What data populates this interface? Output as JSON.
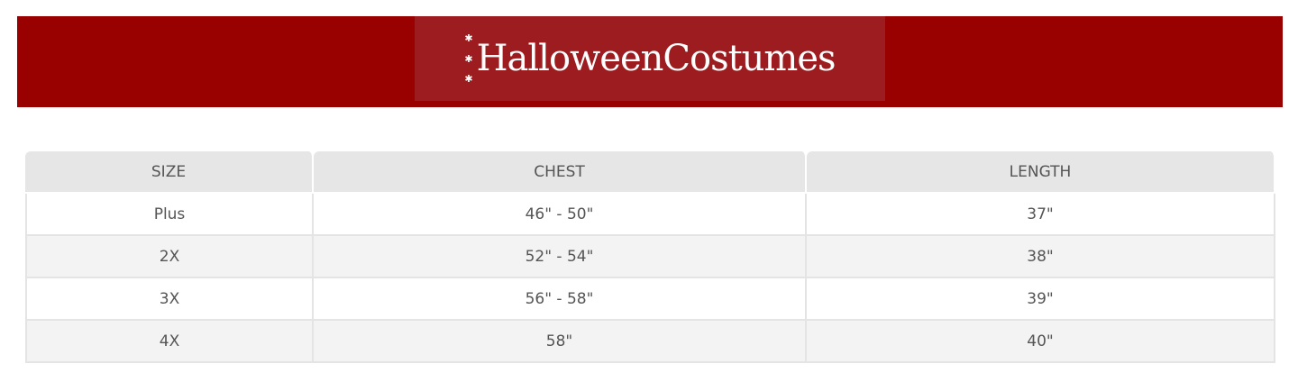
{
  "header": {
    "logo_text": "HalloweenCostumes",
    "brand_color": "#990000"
  },
  "table": {
    "columns": [
      "SIZE",
      "CHEST",
      "LENGTH"
    ],
    "rows": [
      [
        "Plus",
        "46\" - 50\"",
        "37\""
      ],
      [
        "2X",
        "52\" - 54\"",
        "38\""
      ],
      [
        "3X",
        "56\" - 58\"",
        "39\""
      ],
      [
        "4X",
        "58\"",
        "40\""
      ]
    ]
  }
}
